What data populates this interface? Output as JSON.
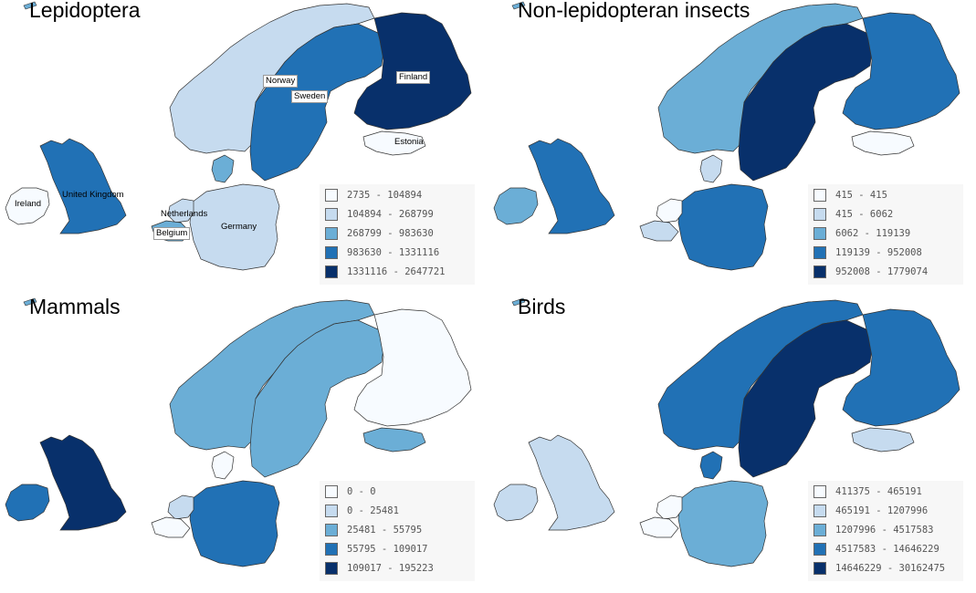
{
  "colors": {
    "c0": "#f7fbff",
    "c1": "#c6dbef",
    "c2": "#6baed6",
    "c3": "#2171b5",
    "c4": "#08306b",
    "border": "#333333"
  },
  "panels": [
    {
      "title": "Lepidoptera",
      "legend": [
        "2735 - 104894",
        "104894 - 268799",
        "268799 - 983630",
        "983630 - 1331116",
        "1331116 - 2647721"
      ],
      "fill": {
        "Norway": "c1",
        "Sweden": "c3",
        "Finland": "c4",
        "Estonia": "c0",
        "Denmark": "c2",
        "Germany": "c1",
        "Netherlands": "c1",
        "Belgium": "c2",
        "United Kingdom": "c3",
        "Ireland": "c0"
      },
      "labels": [
        "Norway",
        "Sweden",
        "Finland",
        "Estonia",
        "United Kingdom",
        "Ireland",
        "Netherlands",
        "Belgium",
        "Germany"
      ]
    },
    {
      "title": "Non-lepidopteran insects",
      "legend": [
        "415 - 415",
        "415 - 6062",
        "6062 - 119139",
        "119139 - 952008",
        "952008 - 1779074"
      ],
      "fill": {
        "Norway": "c2",
        "Sweden": "c4",
        "Finland": "c3",
        "Estonia": "c0",
        "Denmark": "c1",
        "Germany": "c3",
        "Netherlands": "c0",
        "Belgium": "c1",
        "United Kingdom": "c3",
        "Ireland": "c2"
      },
      "labels": []
    },
    {
      "title": "Mammals",
      "legend": [
        "0 - 0",
        "0 - 25481",
        "25481 - 55795",
        "55795 - 109017",
        "109017 - 195223"
      ],
      "fill": {
        "Norway": "c2",
        "Sweden": "c2",
        "Finland": "c0",
        "Estonia": "c2",
        "Denmark": "c0",
        "Germany": "c3",
        "Netherlands": "c1",
        "Belgium": "c0",
        "United Kingdom": "c4",
        "Ireland": "c3"
      },
      "labels": []
    },
    {
      "title": "Birds",
      "legend": [
        "411375 - 465191",
        "465191 - 1207996",
        "1207996 - 4517583",
        "4517583 - 14646229",
        "14646229 - 30162475"
      ],
      "fill": {
        "Norway": "c3",
        "Sweden": "c4",
        "Finland": "c3",
        "Estonia": "c1",
        "Denmark": "c3",
        "Germany": "c2",
        "Netherlands": "c0",
        "Belgium": "c0",
        "United Kingdom": "c1",
        "Ireland": "c1"
      },
      "labels": []
    }
  ]
}
